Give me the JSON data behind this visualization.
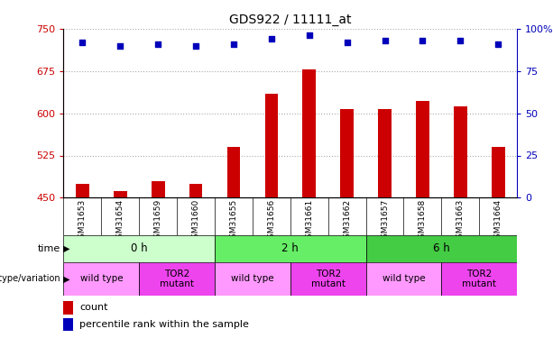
{
  "title": "GDS922 / 11111_at",
  "samples": [
    "GSM31653",
    "GSM31654",
    "GSM31659",
    "GSM31660",
    "GSM31655",
    "GSM31656",
    "GSM31661",
    "GSM31662",
    "GSM31657",
    "GSM31658",
    "GSM31663",
    "GSM31664"
  ],
  "counts": [
    475,
    462,
    480,
    474,
    540,
    635,
    678,
    607,
    608,
    622,
    612,
    540
  ],
  "percentiles": [
    92,
    90,
    91,
    90,
    91,
    94,
    96,
    92,
    93,
    93,
    93,
    91
  ],
  "ylim_left": [
    450,
    750
  ],
  "ylim_right": [
    0,
    100
  ],
  "yticks_left": [
    450,
    525,
    600,
    675,
    750
  ],
  "yticks_right": [
    0,
    25,
    50,
    75,
    100
  ],
  "bar_color": "#cc0000",
  "dot_color": "#0000bb",
  "grid_color": "#aaaaaa",
  "plot_bg": "#ffffff",
  "tick_area_bg": "#dddddd",
  "time_groups": [
    {
      "label": "0 h",
      "start": 0,
      "end": 4,
      "color": "#ccffcc"
    },
    {
      "label": "2 h",
      "start": 4,
      "end": 8,
      "color": "#66ee66"
    },
    {
      "label": "6 h",
      "start": 8,
      "end": 12,
      "color": "#44cc44"
    }
  ],
  "genotype_groups": [
    {
      "label": "wild type",
      "start": 0,
      "end": 2,
      "color": "#ff99ff"
    },
    {
      "label": "TOR2\nmutant",
      "start": 2,
      "end": 4,
      "color": "#ee44ee"
    },
    {
      "label": "wild type",
      "start": 4,
      "end": 6,
      "color": "#ff99ff"
    },
    {
      "label": "TOR2\nmutant",
      "start": 6,
      "end": 8,
      "color": "#ee44ee"
    },
    {
      "label": "wild type",
      "start": 8,
      "end": 10,
      "color": "#ff99ff"
    },
    {
      "label": "TOR2\nmutant",
      "start": 10,
      "end": 12,
      "color": "#ee44ee"
    }
  ],
  "bar_width": 0.35,
  "tick_label_color_left": "#cc0000",
  "tick_label_color_right": "#0000bb",
  "legend_bar_label": "count",
  "legend_dot_label": "percentile rank within the sample"
}
